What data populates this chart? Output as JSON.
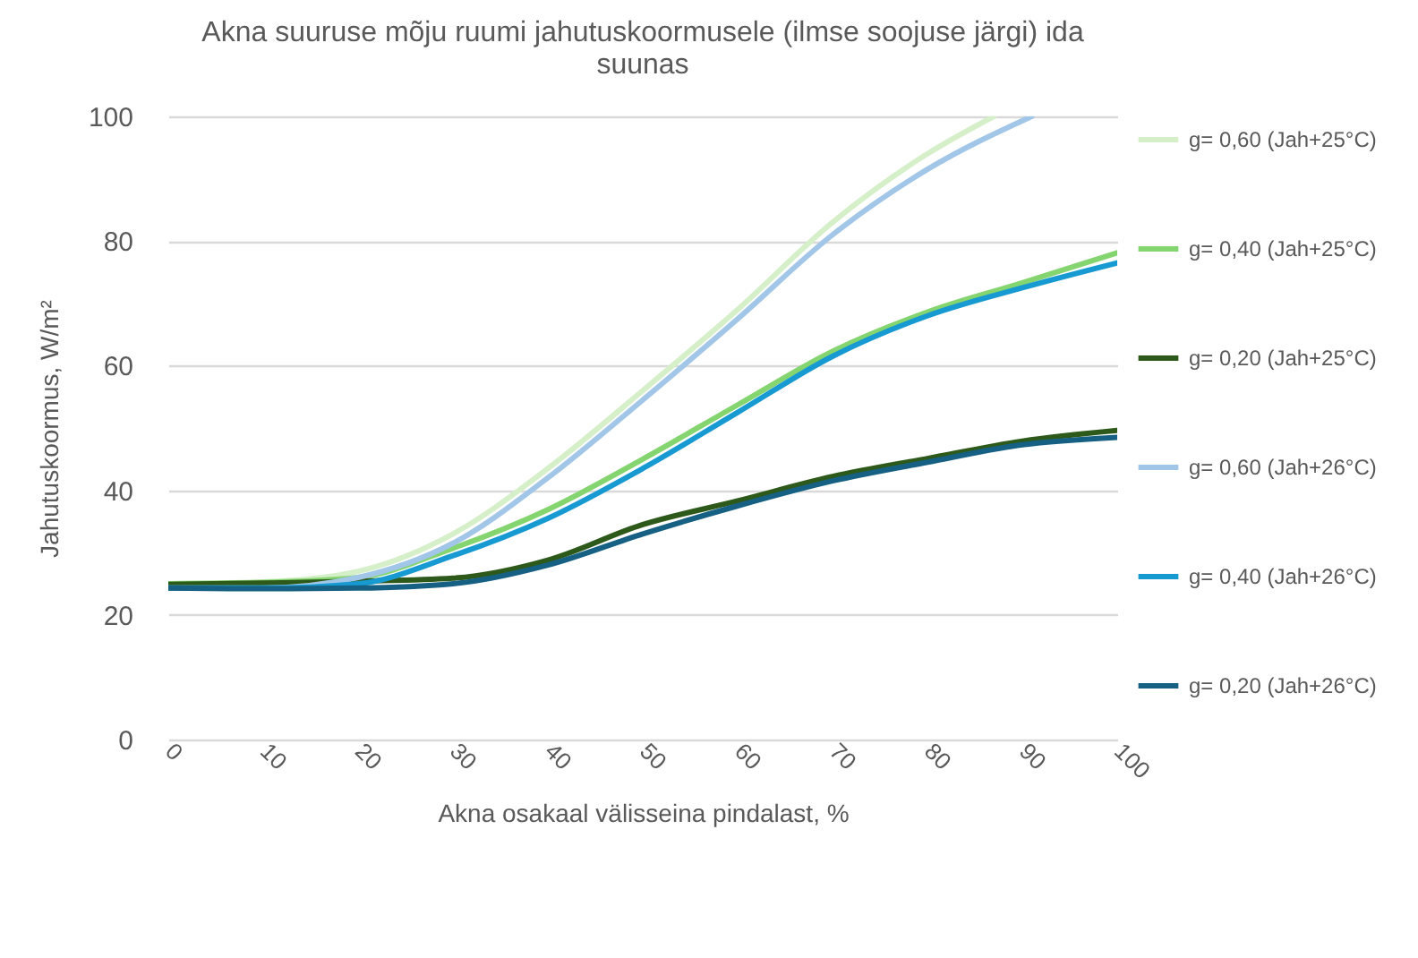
{
  "chart_data": {
    "type": "line",
    "title": "Akna suuruse mõju ruumi jahutuskoormusele (ilmse soojuse järgi) ida suunas",
    "xlabel": "Akna osakaal välisseina pindalast, %",
    "ylabel": "Jahutuskoormus, W/m²",
    "xlim": [
      0,
      100
    ],
    "xticks": [
      0,
      10,
      20,
      30,
      40,
      50,
      60,
      70,
      80,
      90,
      100
    ],
    "ylim": [
      0,
      100
    ],
    "yticks": [
      0,
      20,
      40,
      60,
      80,
      100
    ],
    "grid": "y",
    "legend": "right",
    "marker": "none",
    "line_style": "solid",
    "series": [
      {
        "name": "g= 0,60 (Jah+25°C)",
        "color": "#d5efc9",
        "x": [
          0,
          10,
          20,
          30,
          40,
          50,
          60,
          70,
          80,
          87
        ],
        "values": [
          25,
          25.3,
          27,
          33,
          43.5,
          56,
          69,
          83,
          94,
          100
        ]
      },
      {
        "name": "g= 0,40 (Jah+25°C)",
        "color": "#84d46f",
        "x": [
          0,
          10,
          20,
          30,
          40,
          50,
          60,
          70,
          80,
          90,
          100
        ],
        "values": [
          25,
          25.2,
          26,
          30.7,
          36.9,
          45,
          53.7,
          62.3,
          68.6,
          73.3,
          78.1
        ]
      },
      {
        "name": "g= 0,20 (Jah+25°C)",
        "color": "#2d5a1b",
        "x": [
          0,
          10,
          20,
          30,
          40,
          50,
          60,
          70,
          80,
          90,
          100
        ],
        "values": [
          24.9,
          25.1,
          25.4,
          25.9,
          28.8,
          34.5,
          38.3,
          42.2,
          45.1,
          47.9,
          49.6
        ]
      },
      {
        "name": "g= 0,60 (Jah+26°C)",
        "color": "#a1c6e8",
        "x": [
          0,
          10,
          20,
          30,
          40,
          50,
          60,
          70,
          80,
          91
        ],
        "values": [
          24.3,
          24.3,
          26,
          31.5,
          42,
          54.5,
          67.5,
          81,
          91.5,
          100
        ]
      },
      {
        "name": "g= 0,40 (Jah+26°C)",
        "color": "#1799d1",
        "x": [
          0,
          10,
          20,
          30,
          40,
          50,
          60,
          70,
          80,
          90,
          100
        ],
        "values": [
          24.3,
          24.3,
          25,
          29.5,
          35.5,
          43.5,
          52.5,
          61.5,
          68,
          72.5,
          76.5
        ]
      },
      {
        "name": "g= 0,20 (Jah+26°C)",
        "color": "#166083",
        "x": [
          0,
          10,
          20,
          30,
          40,
          50,
          60,
          70,
          80,
          90,
          100
        ],
        "values": [
          24.3,
          24.2,
          24.3,
          25,
          28,
          33,
          37.5,
          41.5,
          44.5,
          47.3,
          48.5
        ]
      }
    ]
  }
}
